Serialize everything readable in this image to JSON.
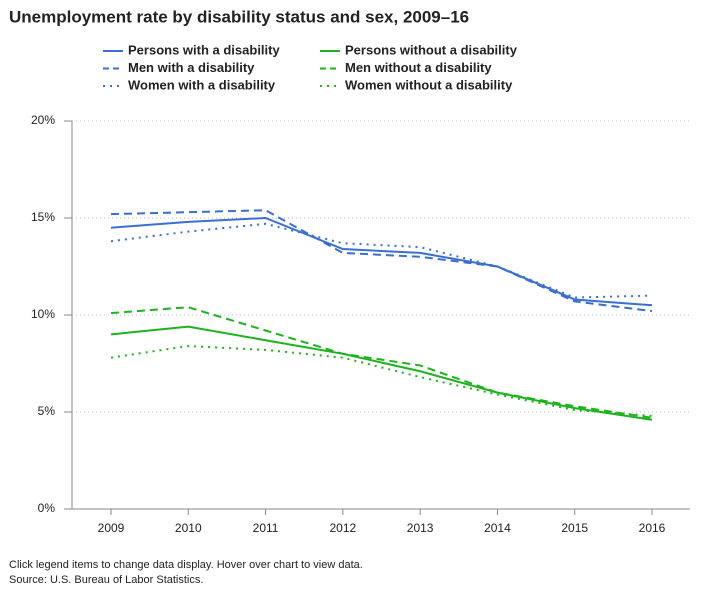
{
  "chart_data": {
    "type": "line",
    "title": "Unemployment rate by disability status and sex, 2009–16",
    "categories": [
      "2009",
      "2010",
      "2011",
      "2012",
      "2013",
      "2014",
      "2015",
      "2016"
    ],
    "series": [
      {
        "name": "Persons with a disability",
        "color": "#3a6fd0",
        "dash": "solid",
        "values": [
          14.5,
          14.8,
          15.0,
          13.4,
          13.2,
          12.5,
          10.8,
          10.5
        ]
      },
      {
        "name": "Men with a disability",
        "color": "#3a6fd0",
        "dash": "dashed",
        "values": [
          15.2,
          15.3,
          15.4,
          13.2,
          13.0,
          12.5,
          10.7,
          10.2
        ]
      },
      {
        "name": "Women with a disability",
        "color": "#3a6fd0",
        "dash": "dotted",
        "values": [
          13.8,
          14.3,
          14.7,
          13.7,
          13.5,
          12.5,
          10.9,
          11.0
        ]
      },
      {
        "name": "Persons without a disability",
        "color": "#1db31d",
        "dash": "solid",
        "values": [
          9.0,
          9.4,
          8.7,
          8.0,
          7.1,
          6.0,
          5.2,
          4.6
        ]
      },
      {
        "name": "Men without a disability",
        "color": "#1db31d",
        "dash": "dashed",
        "values": [
          10.1,
          10.4,
          9.2,
          8.0,
          7.4,
          6.0,
          5.3,
          4.7
        ]
      },
      {
        "name": "Women without a disability",
        "color": "#1db31d",
        "dash": "dotted",
        "values": [
          7.8,
          8.4,
          8.2,
          7.8,
          6.8,
          5.9,
          5.1,
          4.8
        ]
      }
    ],
    "ylim": [
      0,
      20
    ],
    "yticks": [
      {
        "value": 0,
        "label": "0%"
      },
      {
        "value": 5,
        "label": "5%"
      },
      {
        "value": 10,
        "label": "10%"
      },
      {
        "value": 15,
        "label": "15%"
      },
      {
        "value": 20,
        "label": "20%"
      }
    ],
    "grid": true,
    "legend": "top",
    "notes": [
      "Click legend items to change data display. Hover over chart to view data.",
      "Source: U.S. Bureau of Labor Statistics."
    ]
  }
}
